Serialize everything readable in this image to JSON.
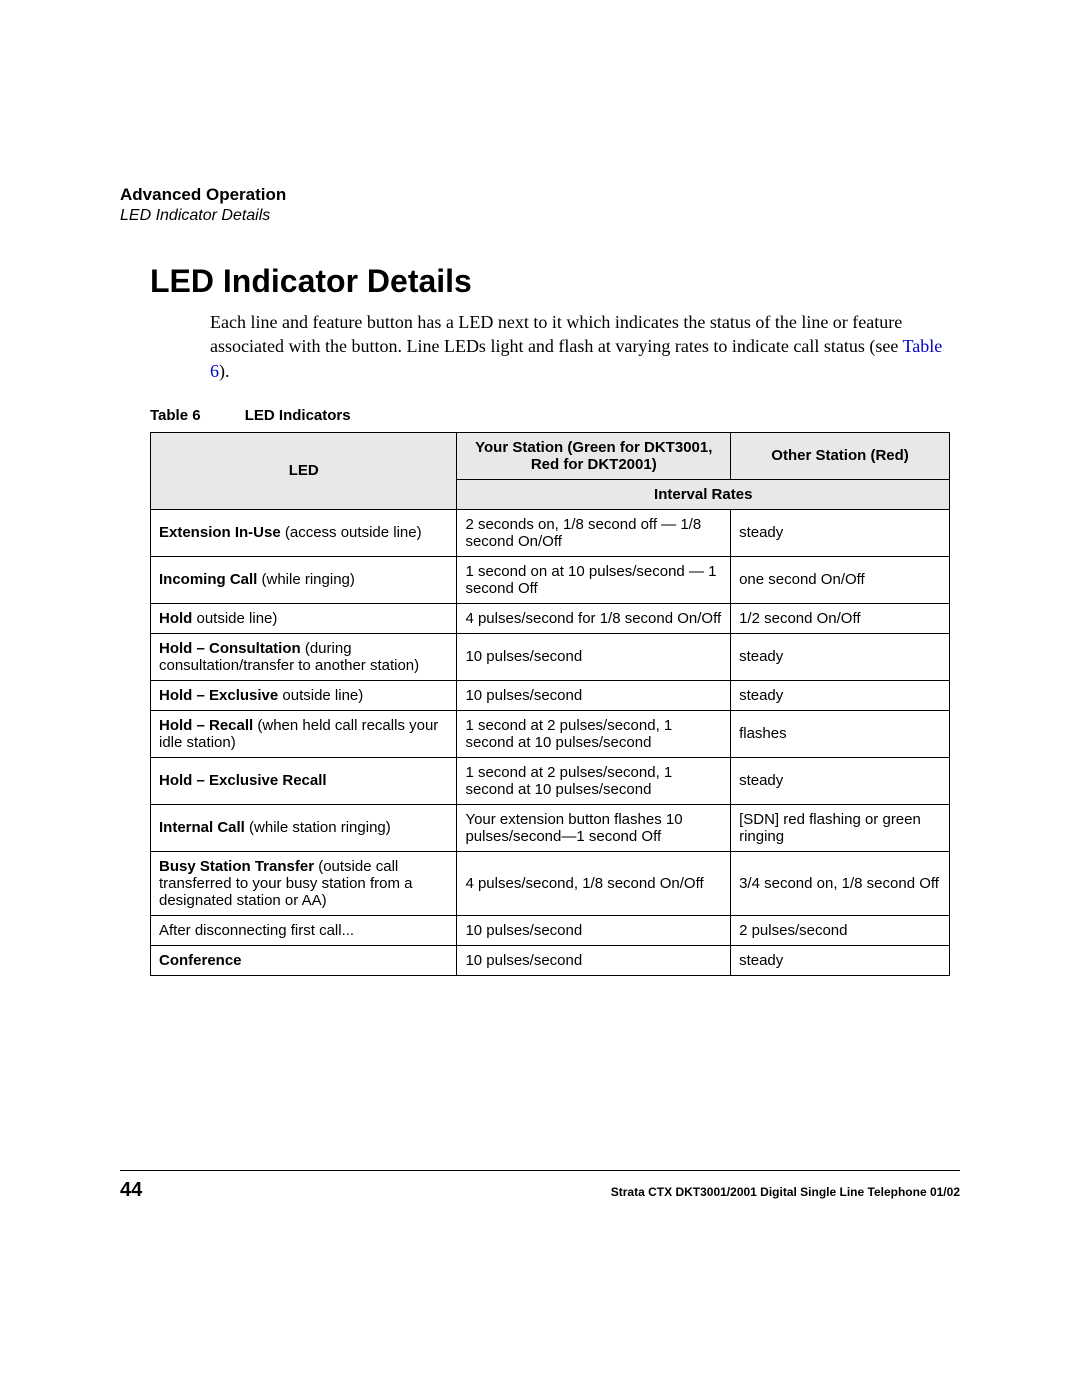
{
  "header": {
    "section": "Advanced Operation",
    "subsection": "LED Indicator Details"
  },
  "title": "LED Indicator Details",
  "body": {
    "prefix": "Each line and feature button has a LED next to it which indicates the status of the line or feature associated with the button. Line LEDs light and flash at varying rates to indicate call status (see ",
    "ref": "Table 6",
    "suffix": ")."
  },
  "table": {
    "caption_label": "Table 6",
    "caption_title": "LED Indicators",
    "columns": {
      "led": "LED",
      "your_station": "Your Station (Green for DKT3001, Red for DKT2001)",
      "other_station": "Other Station (Red)",
      "interval_rates": "Interval Rates"
    },
    "rows": [
      {
        "led_bold": "Extension In-Use",
        "led_rest": " (access outside line)",
        "your": "2 seconds on, 1/8 second off — 1/8 second On/Off",
        "other": "steady"
      },
      {
        "led_bold": "Incoming Call",
        "led_rest": " (while ringing)",
        "your": "1 second on at 10 pulses/second — 1 second Off",
        "other": "one second On/Off"
      },
      {
        "led_bold": "Hold",
        "led_rest": " outside line)",
        "your": "4 pulses/second for 1/8 second On/Off",
        "other": "1/2 second On/Off"
      },
      {
        "led_bold": "Hold – Consultation",
        "led_rest": " (during consultation/transfer to another station)",
        "your": "10 pulses/second",
        "other": "steady"
      },
      {
        "led_bold": "Hold – Exclusive",
        "led_rest": " outside line)",
        "your": "10 pulses/second",
        "other": "steady"
      },
      {
        "led_bold": "Hold – Recall",
        "led_rest": " (when held call recalls your idle station)",
        "your": "1 second at 2 pulses/second, 1 second at 10 pulses/second",
        "other": "flashes"
      },
      {
        "led_bold": "Hold – Exclusive Recall",
        "led_rest": "",
        "your": "1 second at 2 pulses/second, 1 second at 10 pulses/second",
        "other": "steady"
      },
      {
        "led_bold": "Internal Call",
        "led_rest": " (while station ringing)",
        "your": "Your extension button flashes 10 pulses/second—1 second Off",
        "other": "[SDN] red flashing or green ringing"
      },
      {
        "led_bold": "Busy Station Transfer",
        "led_rest": " (outside call transferred to your busy station from a designated station or AA)",
        "your": "4 pulses/second, 1/8 second On/Off",
        "other": "3/4 second on, 1/8 second Off"
      },
      {
        "led_bold": "",
        "led_rest": "After disconnecting first call...",
        "your": "10 pulses/second",
        "other": "2 pulses/second"
      },
      {
        "led_bold": "Conference",
        "led_rest": "",
        "your": "10 pulses/second",
        "other": "steady"
      }
    ]
  },
  "footer": {
    "page": "44",
    "text": "Strata CTX DKT3001/2001 Digital Single Line Telephone   01/02"
  },
  "colors": {
    "background": "#ffffff",
    "text": "#000000",
    "header_bg": "#e8e8e8",
    "link": "#0000cc",
    "border": "#000000"
  }
}
